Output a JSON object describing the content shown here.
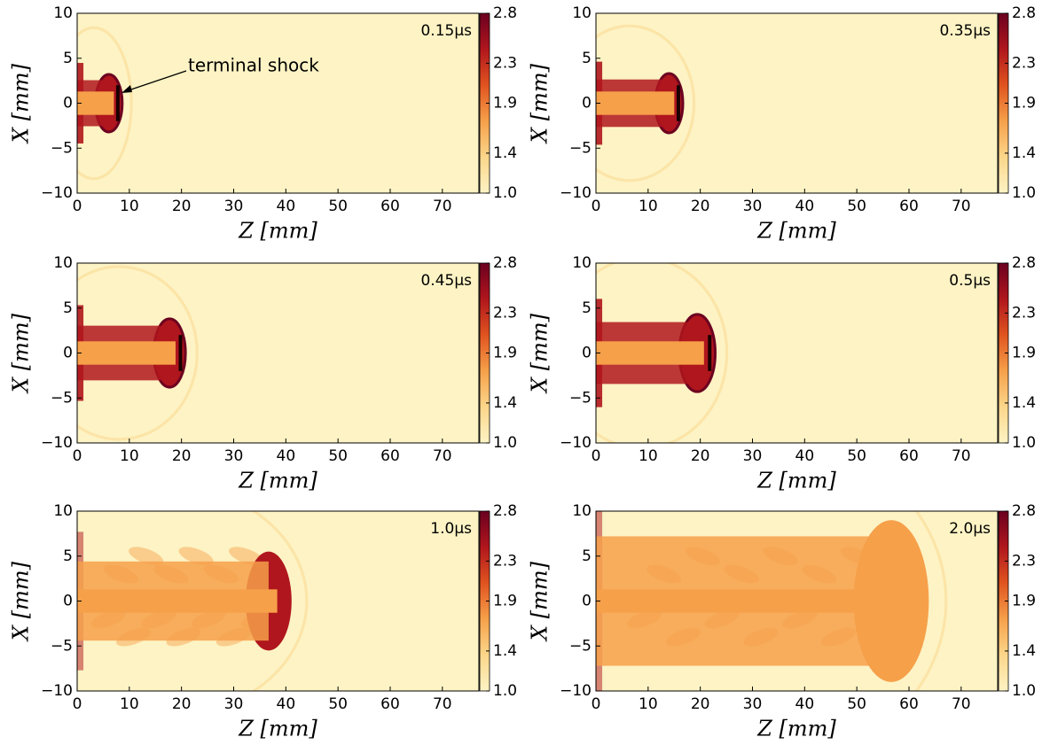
{
  "chart_data": [
    {
      "type": "heatmap",
      "time": "0.15μs",
      "annotation": "terminal shock",
      "xlabel": "Z [mm]",
      "ylabel": "X [mm]",
      "xlim": [
        0,
        77
      ],
      "ylim": [
        -10,
        10
      ],
      "xticks": [
        0,
        10,
        20,
        30,
        40,
        50,
        60,
        70
      ],
      "yticks": [
        {
          "value": -10,
          "label": "−10"
        },
        {
          "value": -5,
          "label": "−5"
        },
        0,
        5,
        10
      ],
      "clim": [
        1,
        2.8
      ],
      "cticks": [
        {
          "value": 1,
          "label": "1.0"
        },
        1.4,
        1.9,
        2.3,
        2.8
      ],
      "colormap": [
        "#fdf3c4",
        "#fbd68a",
        "#f6a04a",
        "#e0541f",
        "#b0161d",
        "#6b0020"
      ]
    },
    {
      "type": "heatmap",
      "time": "0.35μs",
      "xlabel": "Z [mm]",
      "ylabel": "X [mm]",
      "xlim": [
        0,
        77
      ],
      "ylim": [
        -10,
        10
      ],
      "xticks": [
        0,
        10,
        20,
        30,
        40,
        50,
        60,
        70
      ],
      "yticks": [
        {
          "value": -10,
          "label": "−10"
        },
        {
          "value": -5,
          "label": "−5"
        },
        0,
        5,
        10
      ],
      "clim": [
        1,
        2.8
      ],
      "cticks": [
        {
          "value": 1,
          "label": "1.0"
        },
        1.4,
        1.9,
        2.3,
        2.8
      ],
      "colormap": [
        "#fdf3c4",
        "#fbd68a",
        "#f6a04a",
        "#e0541f",
        "#b0161d",
        "#6b0020"
      ]
    },
    {
      "type": "heatmap",
      "time": "0.45μs",
      "xlabel": "Z [mm]",
      "ylabel": "X [mm]",
      "xlim": [
        0,
        77
      ],
      "ylim": [
        -10,
        10
      ],
      "xticks": [
        0,
        10,
        20,
        30,
        40,
        50,
        60,
        70
      ],
      "yticks": [
        {
          "value": -10,
          "label": "−10"
        },
        {
          "value": -5,
          "label": "−5"
        },
        0,
        5,
        10
      ],
      "clim": [
        1,
        2.8
      ],
      "cticks": [
        {
          "value": 1,
          "label": "1.0"
        },
        1.4,
        1.9,
        2.3,
        2.8
      ],
      "colormap": [
        "#fdf3c4",
        "#fbd68a",
        "#f6a04a",
        "#e0541f",
        "#b0161d",
        "#6b0020"
      ]
    },
    {
      "type": "heatmap",
      "time": "0.5μs",
      "xlabel": "Z [mm]",
      "ylabel": "X [mm]",
      "xlim": [
        0,
        77
      ],
      "ylim": [
        -10,
        10
      ],
      "xticks": [
        0,
        10,
        20,
        30,
        40,
        50,
        60,
        70
      ],
      "yticks": [
        {
          "value": -10,
          "label": "−10"
        },
        {
          "value": -5,
          "label": "−5"
        },
        0,
        5,
        10
      ],
      "clim": [
        1,
        2.8
      ],
      "cticks": [
        {
          "value": 1,
          "label": "1.0"
        },
        1.4,
        1.9,
        2.3,
        2.8
      ],
      "colormap": [
        "#fdf3c4",
        "#fbd68a",
        "#f6a04a",
        "#e0541f",
        "#b0161d",
        "#6b0020"
      ]
    },
    {
      "type": "heatmap",
      "time": "1.0μs",
      "xlabel": "Z [mm]",
      "ylabel": "X [mm]",
      "xlim": [
        0,
        77
      ],
      "ylim": [
        -10,
        10
      ],
      "xticks": [
        0,
        10,
        20,
        30,
        40,
        50,
        60,
        70
      ],
      "yticks": [
        {
          "value": -10,
          "label": "−10"
        },
        {
          "value": -5,
          "label": "−5"
        },
        0,
        5,
        10
      ],
      "clim": [
        1,
        2.8
      ],
      "cticks": [
        {
          "value": 1,
          "label": "1.0"
        },
        1.4,
        1.9,
        2.3,
        2.8
      ],
      "colormap": [
        "#fdf3c4",
        "#fbd68a",
        "#f6a04a",
        "#e0541f",
        "#b0161d",
        "#6b0020"
      ]
    },
    {
      "type": "heatmap",
      "time": "2.0μs",
      "xlabel": "Z [mm]",
      "ylabel": "X [mm]",
      "xlim": [
        0,
        77
      ],
      "ylim": [
        -10,
        10
      ],
      "xticks": [
        0,
        10,
        20,
        30,
        40,
        50,
        60,
        70
      ],
      "yticks": [
        {
          "value": -10,
          "label": "−10"
        },
        {
          "value": -5,
          "label": "−5"
        },
        0,
        5,
        10
      ],
      "clim": [
        1,
        2.8
      ],
      "cticks": [
        {
          "value": 1,
          "label": "1.0"
        },
        1.4,
        1.9,
        2.3,
        2.8
      ],
      "colormap": [
        "#fdf3c4",
        "#fbd68a",
        "#f6a04a",
        "#e0541f",
        "#b0161d",
        "#6b0020"
      ]
    }
  ]
}
